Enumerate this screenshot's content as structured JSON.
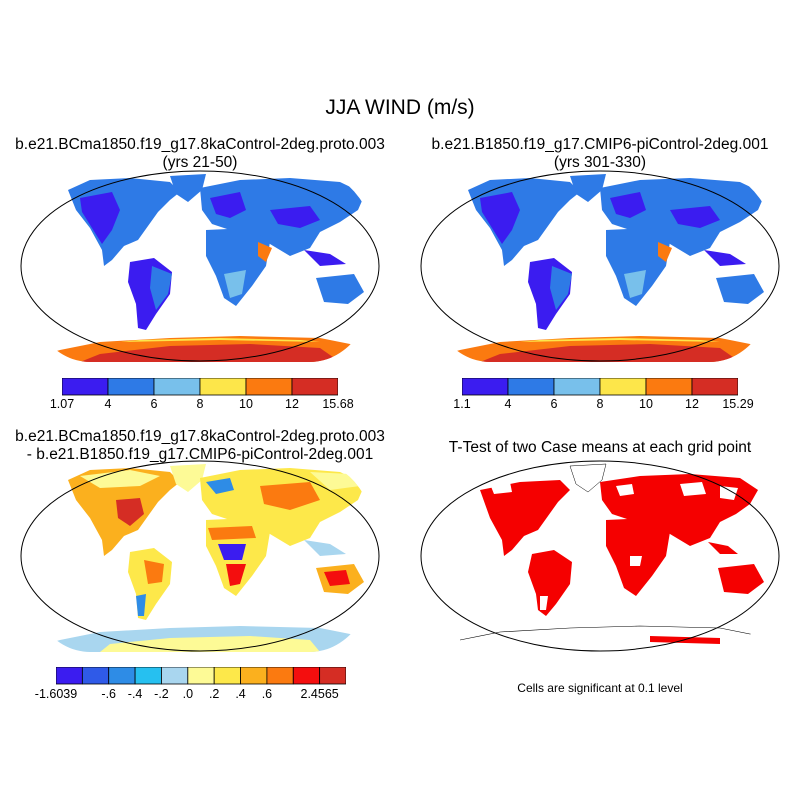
{
  "title": "JJA WIND (m/s)",
  "panels": [
    {
      "title_line1": "b.e21.BCma1850.f19_g17.8kaControl-2deg.proto.003",
      "title_line2": "(yrs 21-50)",
      "colorbar": {
        "colors": [
          "#3b1cf0",
          "#2e7ae6",
          "#78c0eb",
          "#fde64a",
          "#fb7a10",
          "#d52d24"
        ],
        "labels": [
          "1.07",
          "4",
          "6",
          "8",
          "10",
          "12",
          "15.68"
        ]
      }
    },
    {
      "title_line1": "b.e21.B1850.f19_g17.CMIP6-piControl-2deg.001",
      "title_line2": "(yrs 301-330)",
      "colorbar": {
        "colors": [
          "#3b1cf0",
          "#2e7ae6",
          "#78c0eb",
          "#fde64a",
          "#fb7a10",
          "#d52d24"
        ],
        "labels": [
          "1.1",
          "4",
          "6",
          "8",
          "10",
          "12",
          "15.29"
        ]
      }
    },
    {
      "title_line1": "b.e21.BCma1850.f19_g17.8kaControl-2deg.proto.003",
      "title_line2": "- b.e21.B1850.f19_g17.CMIP6-piControl-2deg.001",
      "colorbar": {
        "colors": [
          "#3b1cf0",
          "#2f5ae8",
          "#2e8ce6",
          "#26c0f0",
          "#a9d6ef",
          "#fdfa96",
          "#fde84a",
          "#fbb01e",
          "#fb7a10",
          "#f40e0e",
          "#d52d24"
        ],
        "labels": [
          "-1.6039",
          "",
          "-.6",
          "-.4",
          "-.2",
          ".0",
          ".2",
          ".4",
          ".6",
          "",
          "2.4565"
        ]
      }
    },
    {
      "title_line1": "T-Test of two Case means at each grid point",
      "note": "Cells are significant at 0.1 level",
      "significant_color": "#f50000"
    }
  ]
}
